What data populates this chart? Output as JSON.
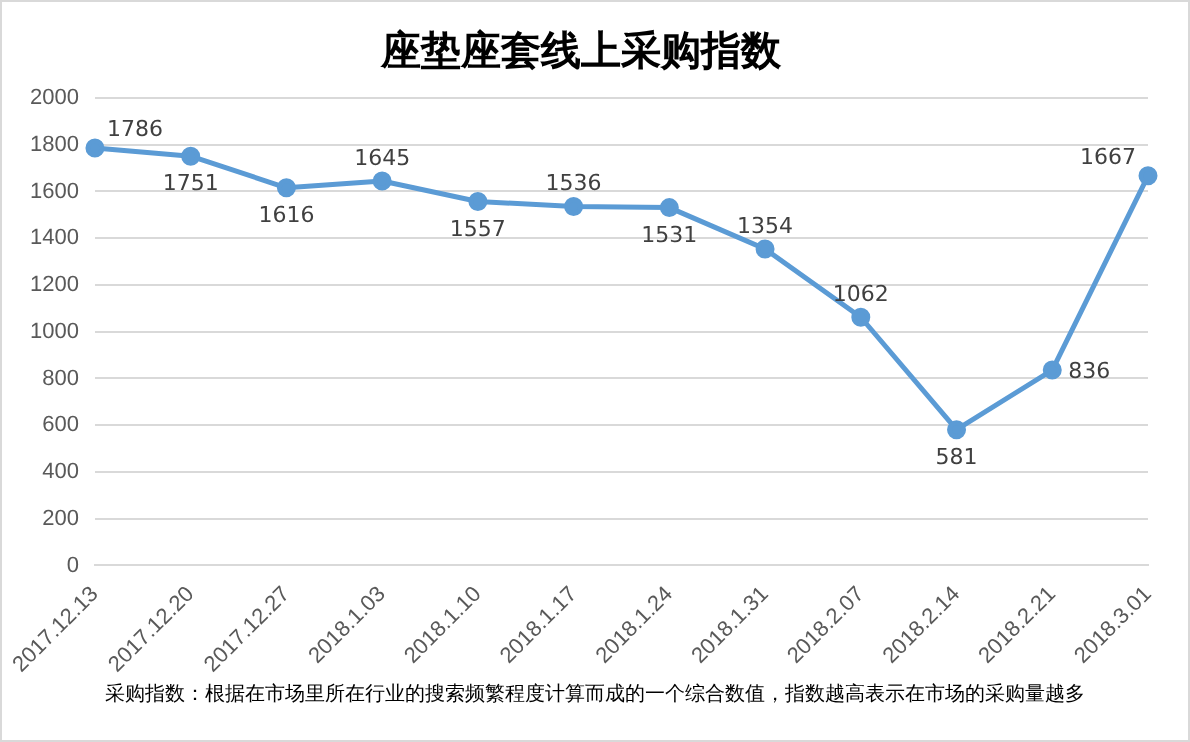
{
  "chart_data": {
    "type": "line",
    "title": "座垫座套线上采购指数",
    "categories": [
      "2017.12.13",
      "2017.12.20",
      "2017.12.27",
      "2018.1.03",
      "2018.1.10",
      "2018.1.17",
      "2018.1.24",
      "2018.1.31",
      "2018.2.07",
      "2018.2.14",
      "2018.2.21",
      "2018.3.01"
    ],
    "series": [
      {
        "color": "#5b9bd5",
        "values": [
          1786,
          1751,
          1616,
          1645,
          1557,
          1536,
          1531,
          1354,
          1062,
          581,
          836,
          1667
        ]
      }
    ],
    "ylim": [
      0,
      2000
    ],
    "yticks": [
      0,
      200,
      400,
      600,
      800,
      1000,
      1200,
      1400,
      1600,
      1800,
      2000
    ],
    "grid": "y",
    "legend": false,
    "marker": "circle",
    "line_style": "solid",
    "data_labels": true,
    "annotations": [
      "采购指数：根据在市场里所在行业的搜索频繁程度计算而成的一个综合数值，指数越高表示在市场的采购量越多"
    ]
  }
}
